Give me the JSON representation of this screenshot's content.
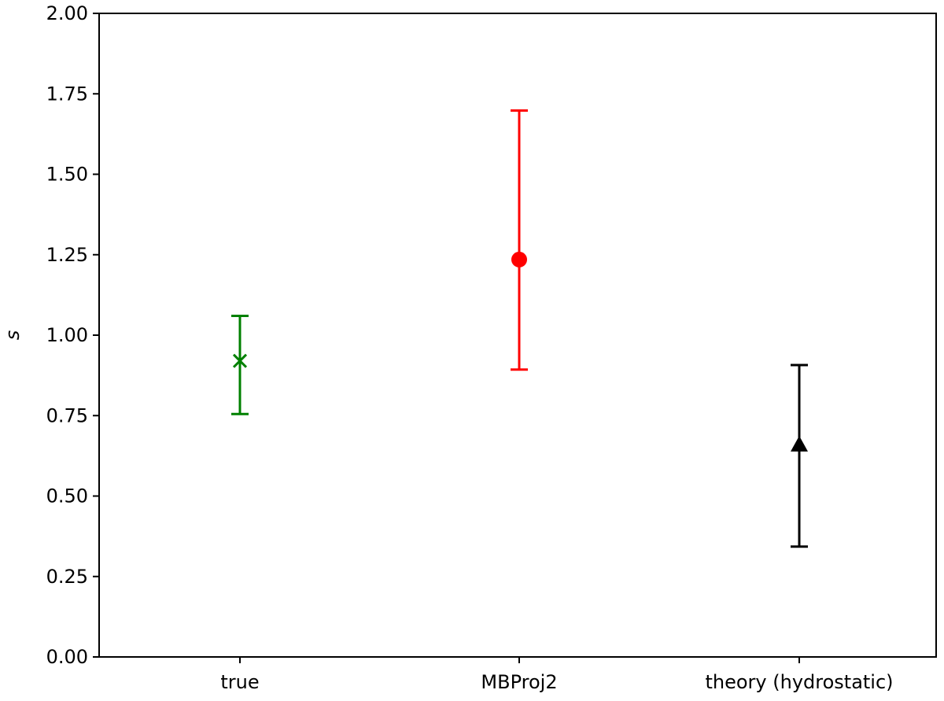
{
  "chart_data": {
    "type": "scatter",
    "title": "",
    "xlabel": "",
    "ylabel": "s",
    "ylim": [
      0,
      2
    ],
    "yticks": [
      "0.00",
      "0.25",
      "0.50",
      "0.75",
      "1.00",
      "1.25",
      "1.50",
      "1.75",
      "2.00"
    ],
    "categories": [
      "true",
      "MBProj2",
      "theory (hydrostatic)"
    ],
    "grid": false,
    "legend": "none",
    "points": [
      {
        "category": "true",
        "value": 0.92,
        "lower": 0.755,
        "upper": 1.06,
        "marker": "x",
        "color": "#008000"
      },
      {
        "category": "MBProj2",
        "value": 1.235,
        "lower": 0.893,
        "upper": 1.698,
        "marker": "circle",
        "color": "#ff0000"
      },
      {
        "category": "theory (hydrostatic)",
        "value": 0.66,
        "lower": 0.343,
        "upper": 0.907,
        "marker": "triangle-up",
        "color": "#000000"
      }
    ]
  }
}
